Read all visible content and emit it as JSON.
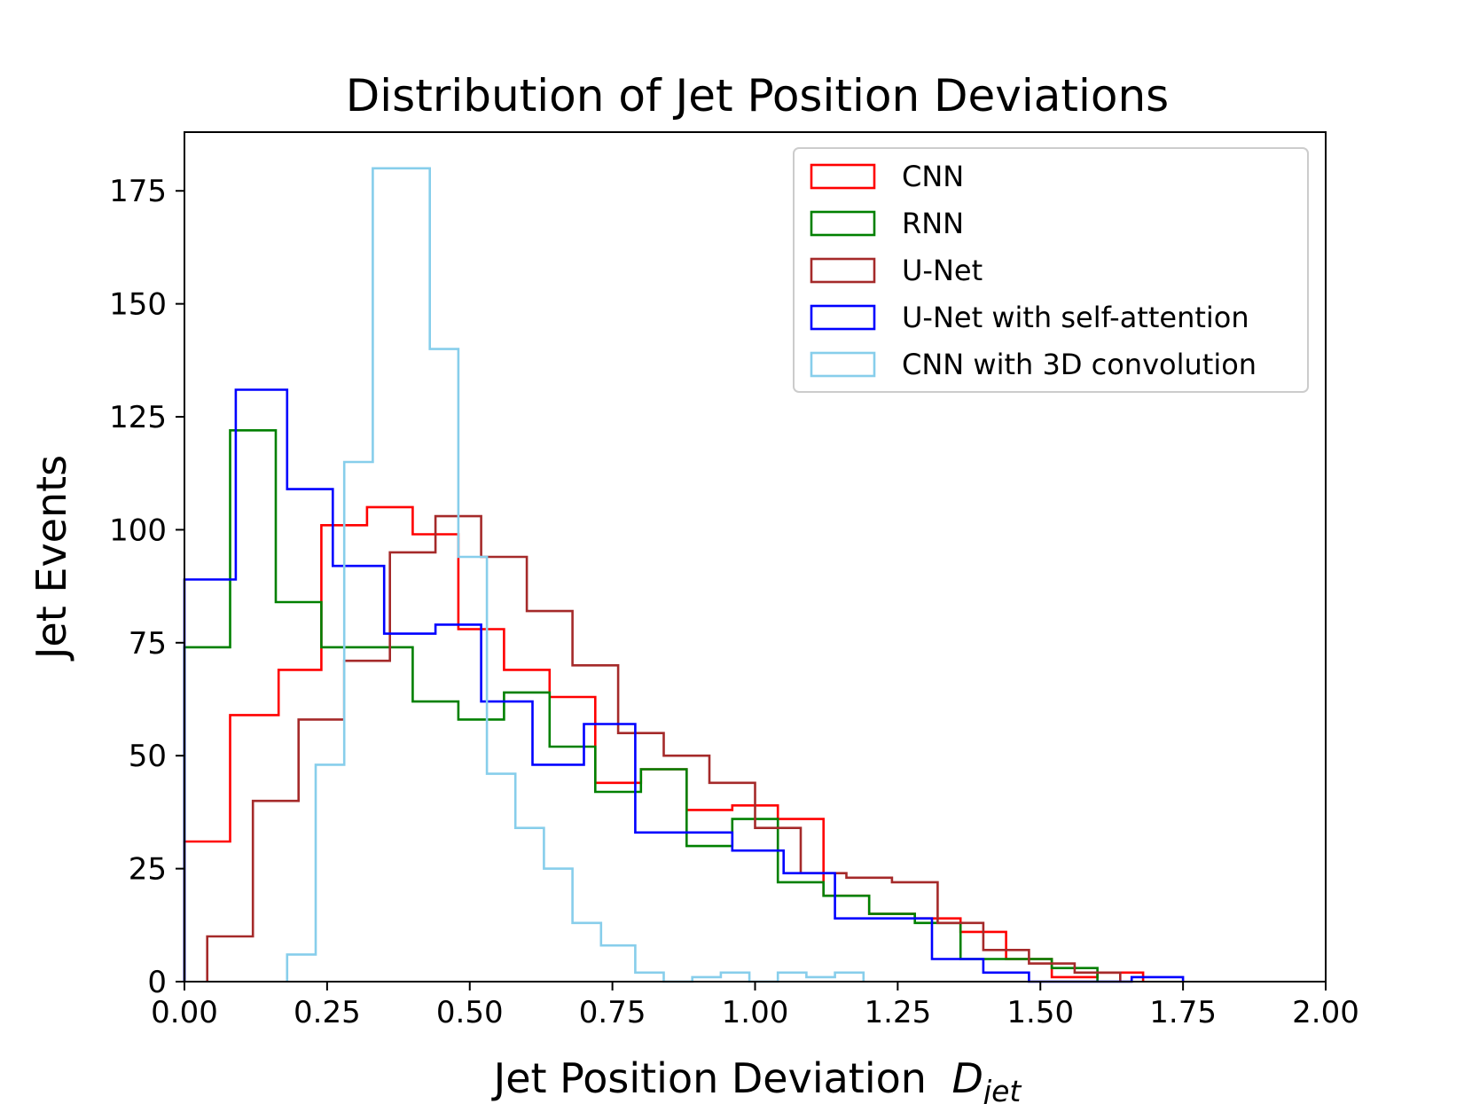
{
  "chart_data": {
    "type": "histogram",
    "title": "Distribution of Jet Position Deviations",
    "xlabel": "Jet Position Deviation",
    "xlabel_symbol": "D",
    "xlabel_subscript": "jet",
    "ylabel": "Jet Events",
    "xlim": [
      0,
      2
    ],
    "ylim": [
      0,
      188
    ],
    "xticks": [
      "0.00",
      "0.25",
      "0.50",
      "0.75",
      "1.00",
      "1.25",
      "1.50",
      "1.75",
      "2.00"
    ],
    "yticks": [
      "0",
      "25",
      "50",
      "75",
      "100",
      "125",
      "150",
      "175"
    ],
    "legend_position": "top-right",
    "series": [
      {
        "name": "CNN",
        "color": "#ff0000",
        "steps": [
          [
            0.0,
            31
          ],
          [
            0.08,
            59
          ],
          [
            0.165,
            69
          ],
          [
            0.24,
            101
          ],
          [
            0.32,
            105
          ],
          [
            0.4,
            99
          ],
          [
            0.48,
            78
          ],
          [
            0.56,
            69
          ],
          [
            0.64,
            63
          ],
          [
            0.72,
            44
          ],
          [
            0.8,
            47
          ],
          [
            0.88,
            38
          ],
          [
            0.96,
            39
          ],
          [
            1.04,
            36
          ],
          [
            1.12,
            19
          ],
          [
            1.2,
            15
          ],
          [
            1.28,
            14
          ],
          [
            1.36,
            11
          ],
          [
            1.44,
            5
          ],
          [
            1.52,
            1
          ],
          [
            1.6,
            2
          ],
          [
            1.68,
            0
          ]
        ]
      },
      {
        "name": "RNN",
        "color": "#008000",
        "steps": [
          [
            0.0,
            74
          ],
          [
            0.08,
            122
          ],
          [
            0.16,
            84
          ],
          [
            0.24,
            74
          ],
          [
            0.32,
            74
          ],
          [
            0.4,
            62
          ],
          [
            0.48,
            58
          ],
          [
            0.56,
            64
          ],
          [
            0.64,
            52
          ],
          [
            0.72,
            42
          ],
          [
            0.8,
            47
          ],
          [
            0.88,
            30
          ],
          [
            0.96,
            36
          ],
          [
            1.04,
            22
          ],
          [
            1.12,
            19
          ],
          [
            1.2,
            15
          ],
          [
            1.28,
            13
          ],
          [
            1.36,
            5
          ],
          [
            1.44,
            5
          ],
          [
            1.52,
            3
          ],
          [
            1.6,
            0
          ]
        ]
      },
      {
        "name": "U-Net",
        "color": "#a52a2a",
        "steps": [
          [
            0.04,
            10
          ],
          [
            0.12,
            40
          ],
          [
            0.2,
            58
          ],
          [
            0.28,
            71
          ],
          [
            0.36,
            95
          ],
          [
            0.44,
            103
          ],
          [
            0.52,
            94
          ],
          [
            0.6,
            82
          ],
          [
            0.68,
            70
          ],
          [
            0.76,
            55
          ],
          [
            0.84,
            50
          ],
          [
            0.92,
            44
          ],
          [
            1.0,
            34
          ],
          [
            1.08,
            24
          ],
          [
            1.16,
            23
          ],
          [
            1.24,
            22
          ],
          [
            1.32,
            13
          ],
          [
            1.4,
            7
          ],
          [
            1.48,
            4
          ],
          [
            1.56,
            2
          ],
          [
            1.64,
            0
          ]
        ]
      },
      {
        "name": "U-Net with self-attention",
        "color": "#0000ff",
        "steps": [
          [
            0.0,
            89
          ],
          [
            0.09,
            131
          ],
          [
            0.18,
            109
          ],
          [
            0.26,
            92
          ],
          [
            0.35,
            77
          ],
          [
            0.44,
            79
          ],
          [
            0.52,
            62
          ],
          [
            0.61,
            48
          ],
          [
            0.7,
            57
          ],
          [
            0.79,
            33
          ],
          [
            0.88,
            33
          ],
          [
            0.96,
            29
          ],
          [
            1.05,
            24
          ],
          [
            1.14,
            14
          ],
          [
            1.22,
            14
          ],
          [
            1.31,
            5
          ],
          [
            1.4,
            2
          ],
          [
            1.48,
            0
          ],
          [
            1.57,
            0
          ],
          [
            1.66,
            1
          ],
          [
            1.75,
            0
          ]
        ]
      },
      {
        "name": "CNN with 3D convolution",
        "color": "#87ceeb",
        "steps": [
          [
            0.18,
            6
          ],
          [
            0.23,
            48
          ],
          [
            0.28,
            115
          ],
          [
            0.33,
            180
          ],
          [
            0.38,
            180
          ],
          [
            0.43,
            140
          ],
          [
            0.48,
            94
          ],
          [
            0.53,
            46
          ],
          [
            0.58,
            34
          ],
          [
            0.63,
            25
          ],
          [
            0.68,
            13
          ],
          [
            0.73,
            8
          ],
          [
            0.79,
            2
          ],
          [
            0.84,
            0
          ],
          [
            0.89,
            1
          ],
          [
            0.94,
            2
          ],
          [
            0.99,
            0
          ],
          [
            1.04,
            2
          ],
          [
            1.09,
            1
          ],
          [
            1.14,
            2
          ],
          [
            1.19,
            0
          ]
        ]
      }
    ]
  }
}
